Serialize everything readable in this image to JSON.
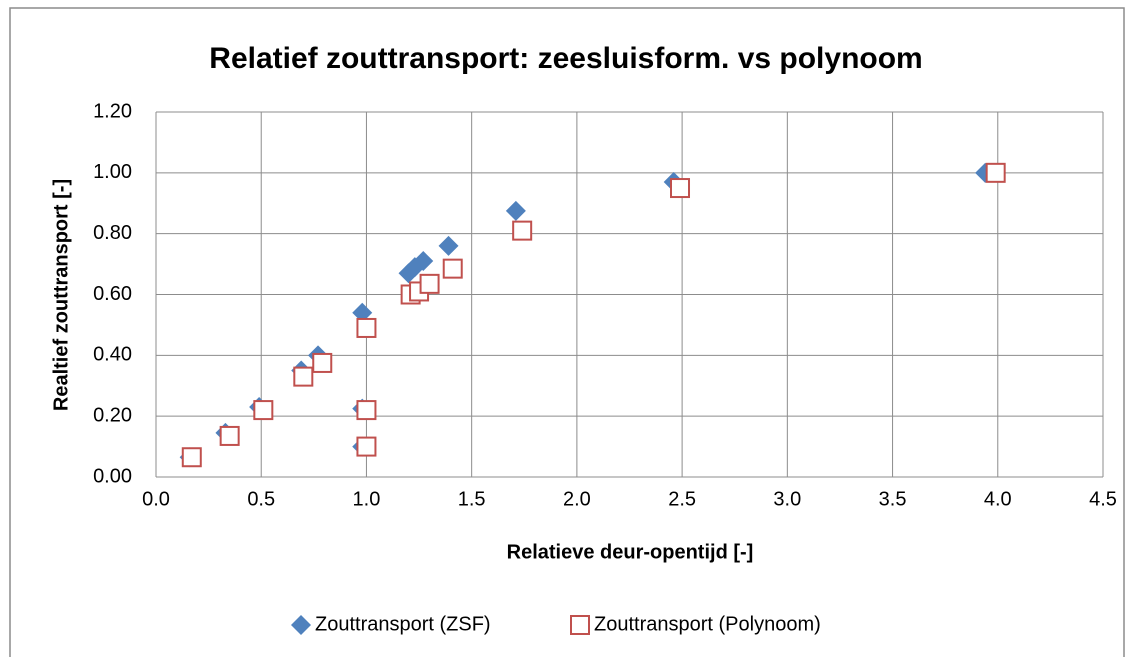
{
  "chart_data": {
    "type": "scatter",
    "title": "Relatief zouttransport: zeesluisform. vs polynoom",
    "x_label": "Relatieve deur-opentijd  [-]",
    "y_label": "Realtief zouttransport  [-]",
    "xlim": [
      0,
      4.5
    ],
    "xticks": [
      {
        "value": 0,
        "label": "0.0"
      },
      {
        "value": 0.5,
        "label": "0.5"
      },
      {
        "value": 1,
        "label": "1.0"
      },
      {
        "value": 1.5,
        "label": "1.5"
      },
      {
        "value": 2,
        "label": "2.0"
      },
      {
        "value": 2.5,
        "label": "2.5"
      },
      {
        "value": 3,
        "label": "3.0"
      },
      {
        "value": 3.5,
        "label": "3.5"
      },
      {
        "value": 4,
        "label": "4.0"
      },
      {
        "value": 4.5,
        "label": "4.5"
      }
    ],
    "ylim": [
      0,
      1.2
    ],
    "yticks": [
      {
        "value": 0,
        "label": "0.00"
      },
      {
        "value": 0.2,
        "label": "0.20"
      },
      {
        "value": 0.4,
        "label": "0.40"
      },
      {
        "value": 0.6,
        "label": "0.60"
      },
      {
        "value": 0.8,
        "label": "0.80"
      },
      {
        "value": 1,
        "label": "1.00"
      },
      {
        "value": 1.2,
        "label": "1.20"
      }
    ],
    "grid": true,
    "legend": "bottom",
    "series": [
      {
        "name": "Zouttransport (ZSF)",
        "color": "#4f81bd",
        "marker": "diamond",
        "x": [
          0.16,
          0.33,
          0.49,
          0.69,
          0.77,
          0.98,
          0.98,
          0.98,
          1.2,
          1.23,
          1.27,
          1.39,
          1.71,
          2.46,
          3.94
        ],
        "values": [
          0.065,
          0.145,
          0.23,
          0.35,
          0.4,
          0.54,
          0.225,
          0.1,
          0.67,
          0.69,
          0.71,
          0.76,
          0.875,
          0.97,
          1.0
        ]
      },
      {
        "name": "Zouttransport (Polynoom)",
        "color": "#c0504d",
        "marker": "square",
        "x": [
          0.17,
          0.35,
          0.51,
          0.7,
          0.79,
          1.0,
          1.0,
          1.0,
          1.21,
          1.25,
          1.3,
          1.41,
          1.74,
          2.49,
          3.99
        ],
        "values": [
          0.065,
          0.135,
          0.22,
          0.33,
          0.375,
          0.49,
          0.22,
          0.1,
          0.6,
          0.61,
          0.635,
          0.685,
          0.81,
          0.95,
          1.0
        ]
      }
    ]
  }
}
